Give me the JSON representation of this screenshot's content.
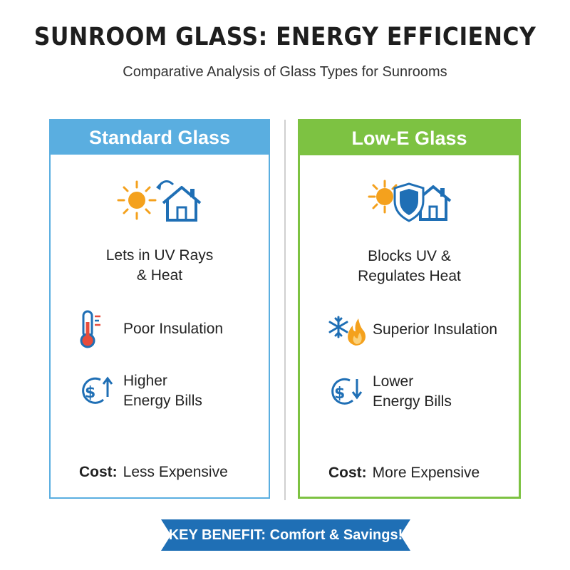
{
  "header": {
    "title": "SUNROOM GLASS: ENERGY EFFICIENCY",
    "subtitle": "Comparative Analysis of Glass Types for Sunrooms"
  },
  "panels": [
    {
      "heading": "Standard Glass",
      "hero_line1": "Lets in UV Rays",
      "hero_line2": "& Heat",
      "hero_icon": "sun-house-icon",
      "feature1": "Poor Insulation",
      "feature1_icon": "thermometer-icon",
      "feature2_line1": "Higher",
      "feature2_line2": "Energy Bills",
      "feature2_icon": "dollar-up-icon",
      "cost_label": "Cost:",
      "cost_value": "Less Expensive",
      "color": "#5aaee0"
    },
    {
      "heading": "Low-E Glass",
      "hero_line1": "Blocks UV &",
      "hero_line2": "Regulates Heat",
      "hero_icon": "sun-shield-house-icon",
      "feature1": "Superior Insulation",
      "feature1_icon": "snowflake-flame-icon",
      "feature2_line1": "Lower",
      "feature2_line2": "Energy Bills",
      "feature2_icon": "dollar-down-icon",
      "cost_label": "Cost:",
      "cost_value": "More Expensive",
      "color": "#7dc242"
    }
  ],
  "banner": {
    "text": "KEY BENEFIT: Comfort & Savings!",
    "color": "#1f6fb5"
  }
}
